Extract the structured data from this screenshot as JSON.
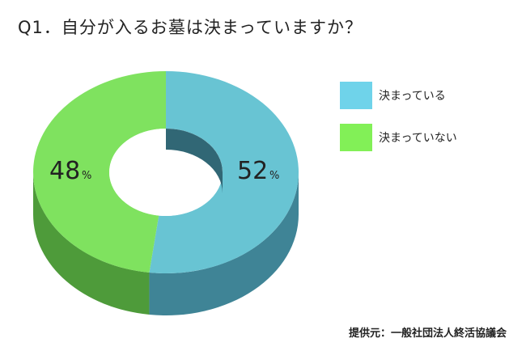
{
  "title": "Q1．自分が入るお墓は決まっていますか？",
  "source": "提供元：一般社団法人終活協議会",
  "chart_data": {
    "type": "pie",
    "style": "3d-donut",
    "categories": [
      "決まっている",
      "決まっていない"
    ],
    "values": [
      52,
      48
    ],
    "data_labels": [
      {
        "number": "52",
        "unit": "%"
      },
      {
        "number": "48",
        "unit": "%"
      }
    ],
    "legend_position": "right",
    "colors": {
      "slice_tops": [
        "#68c4d3",
        "#7fe25f"
      ],
      "slice_sides": [
        "#3f8496",
        "#4e9b3a"
      ],
      "legend_swatches": [
        "#6fd3ea",
        "#82f057"
      ]
    }
  }
}
